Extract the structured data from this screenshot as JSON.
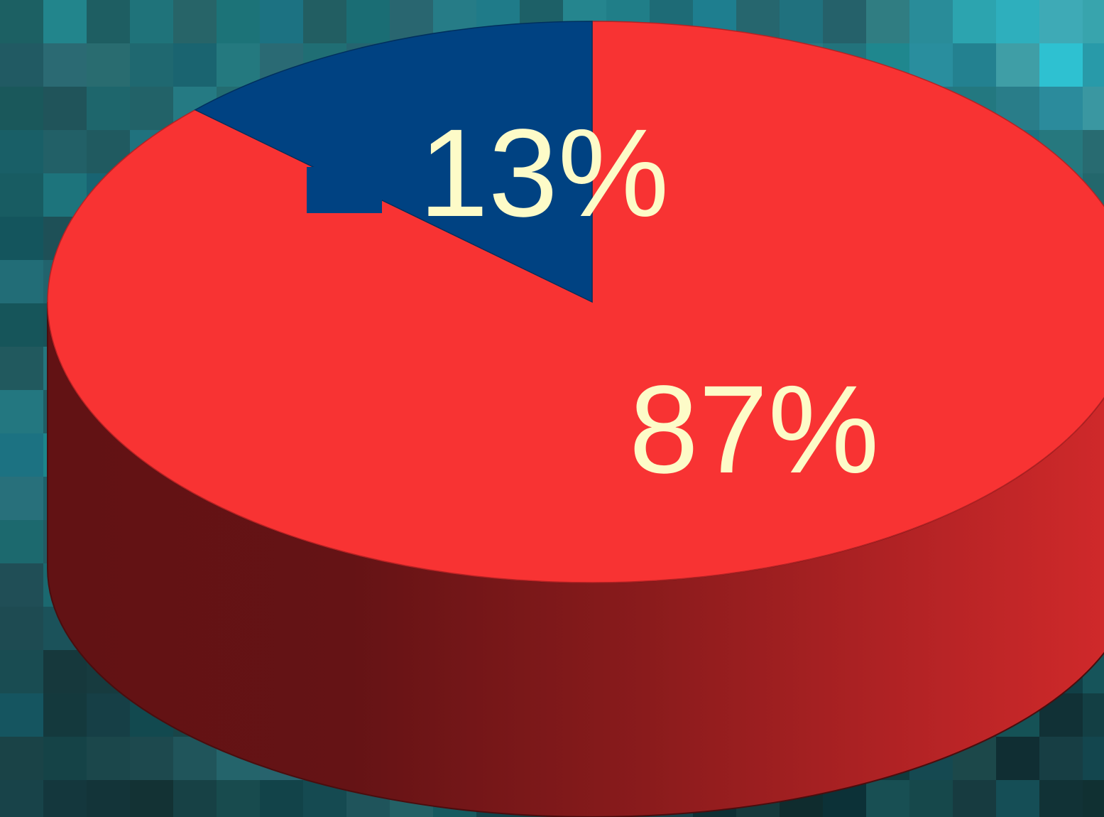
{
  "chart_data": {
    "type": "pie",
    "style": "3d",
    "slices": [
      {
        "value": 13,
        "label": "13%",
        "color": "#004282"
      },
      {
        "value": 87,
        "label": "87%",
        "color": "#f83333"
      }
    ],
    "side_color": "#6a1416",
    "label_color": "#fdfbc8",
    "background_color": "#1b6c74"
  }
}
